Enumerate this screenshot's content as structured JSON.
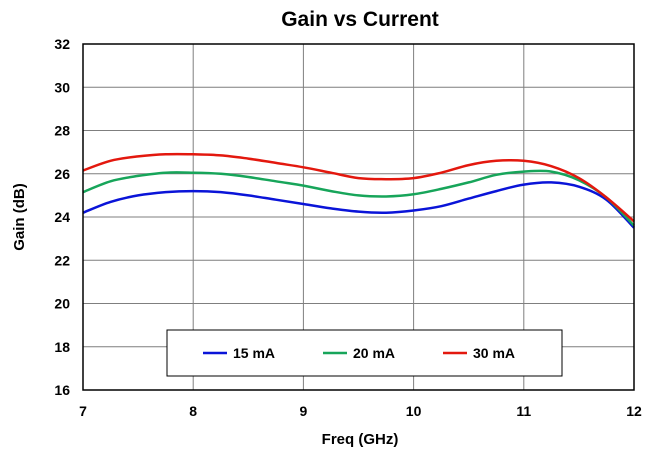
{
  "chart_data": {
    "type": "line",
    "title": "Gain vs Current",
    "xlabel": "Freq (GHz)",
    "ylabel": "Gain (dB)",
    "xlim": [
      7,
      12
    ],
    "ylim": [
      16,
      32
    ],
    "x_ticks": [
      "7",
      "8",
      "9",
      "10",
      "11",
      "12"
    ],
    "y_ticks": [
      "16",
      "18",
      "20",
      "22",
      "24",
      "26",
      "28",
      "30",
      "32"
    ],
    "grid": true,
    "legend_position": "bottom-center",
    "series": [
      {
        "name": "15 mA",
        "color": "#0a14d8",
        "x": [
          7.0,
          7.25,
          7.5,
          7.75,
          8.0,
          8.25,
          8.5,
          8.75,
          9.0,
          9.25,
          9.5,
          9.75,
          10.0,
          10.25,
          10.5,
          10.75,
          11.0,
          11.25,
          11.5,
          11.75,
          12.0
        ],
        "y": [
          24.2,
          24.7,
          25.0,
          25.15,
          25.2,
          25.15,
          25.0,
          24.8,
          24.6,
          24.4,
          24.25,
          24.2,
          24.3,
          24.5,
          24.85,
          25.2,
          25.5,
          25.6,
          25.4,
          24.8,
          23.5
        ]
      },
      {
        "name": "20 mA",
        "color": "#17a55a",
        "x": [
          7.0,
          7.25,
          7.5,
          7.75,
          8.0,
          8.25,
          8.5,
          8.75,
          9.0,
          9.25,
          9.5,
          9.75,
          10.0,
          10.25,
          10.5,
          10.75,
          11.0,
          11.25,
          11.5,
          11.75,
          12.0
        ],
        "y": [
          25.15,
          25.65,
          25.9,
          26.05,
          26.05,
          26.0,
          25.85,
          25.65,
          25.45,
          25.2,
          25.0,
          24.95,
          25.05,
          25.3,
          25.6,
          25.95,
          26.1,
          26.1,
          25.7,
          24.9,
          23.6
        ]
      },
      {
        "name": "30 mA",
        "color": "#e3180e",
        "x": [
          7.0,
          7.25,
          7.5,
          7.75,
          8.0,
          8.25,
          8.5,
          8.75,
          9.0,
          9.25,
          9.5,
          9.75,
          10.0,
          10.25,
          10.5,
          10.75,
          11.0,
          11.25,
          11.5,
          11.75,
          12.0
        ],
        "y": [
          26.15,
          26.6,
          26.8,
          26.9,
          26.9,
          26.85,
          26.7,
          26.5,
          26.3,
          26.05,
          25.8,
          25.75,
          25.8,
          26.05,
          26.4,
          26.6,
          26.6,
          26.35,
          25.8,
          24.9,
          23.8
        ]
      }
    ]
  }
}
